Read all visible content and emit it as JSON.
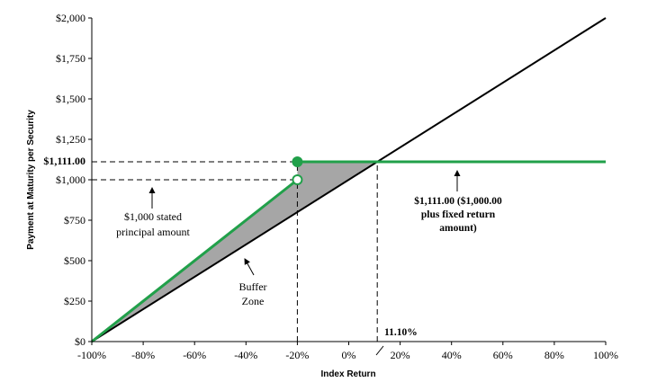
{
  "chart_data": {
    "type": "line",
    "xlabel": "Index Return",
    "ylabel": "Payment at Maturity per Security",
    "xlim": [
      -100,
      100
    ],
    "ylim": [
      0,
      2000
    ],
    "x_ticks": [
      "-100%",
      "-80%",
      "-60%",
      "-40%",
      "-20%",
      "0%",
      "20%",
      "40%",
      "60%",
      "80%",
      "100%"
    ],
    "y_ticks": [
      "$0",
      "$250",
      "$500",
      "$750",
      "$1,000",
      "$1,250",
      "$1,500",
      "$1,750",
      "$2,000"
    ],
    "y_extra_tick": "$1,111.00",
    "series": [
      {
        "role": "index",
        "color": "#000000",
        "x": [
          -100,
          100
        ],
        "y": [
          0,
          2000
        ]
      },
      {
        "role": "payoff-lower",
        "color": "#21a04a",
        "x": [
          -100,
          -20
        ],
        "y": [
          0,
          1000
        ]
      },
      {
        "role": "payoff-upper",
        "color": "#21a04a",
        "x": [
          -20,
          100
        ],
        "y": [
          1111,
          1111
        ]
      }
    ],
    "shaded_region": {
      "color": "#a6a6a6",
      "x": [
        -100,
        -20,
        -20,
        11.1
      ],
      "y": [
        0,
        1000,
        1111,
        1111
      ]
    },
    "markers": [
      {
        "type": "filled-circle",
        "x": -20,
        "y": 1111,
        "color": "#21a04a"
      },
      {
        "type": "open-circle",
        "x": -20,
        "y": 1000,
        "color": "#21a04a"
      }
    ],
    "reference_lines": [
      {
        "x": [
          -100,
          -20
        ],
        "y": [
          1111,
          1111
        ]
      },
      {
        "x": [
          -100,
          -20
        ],
        "y": [
          1000,
          1000
        ]
      },
      {
        "x": [
          -20,
          -20
        ],
        "y": [
          0,
          1111
        ]
      },
      {
        "x": [
          11.1,
          11.1
        ],
        "y": [
          0,
          1111
        ]
      }
    ],
    "annotations": {
      "breakeven": "11.10%",
      "stated_principal": [
        "$1,000 stated",
        "principal amount"
      ],
      "buffer_zone": [
        "Buffer",
        "Zone"
      ],
      "fixed_return": [
        "$1,111.00 ($1,000.00",
        "plus fixed return",
        "amount)"
      ]
    }
  }
}
